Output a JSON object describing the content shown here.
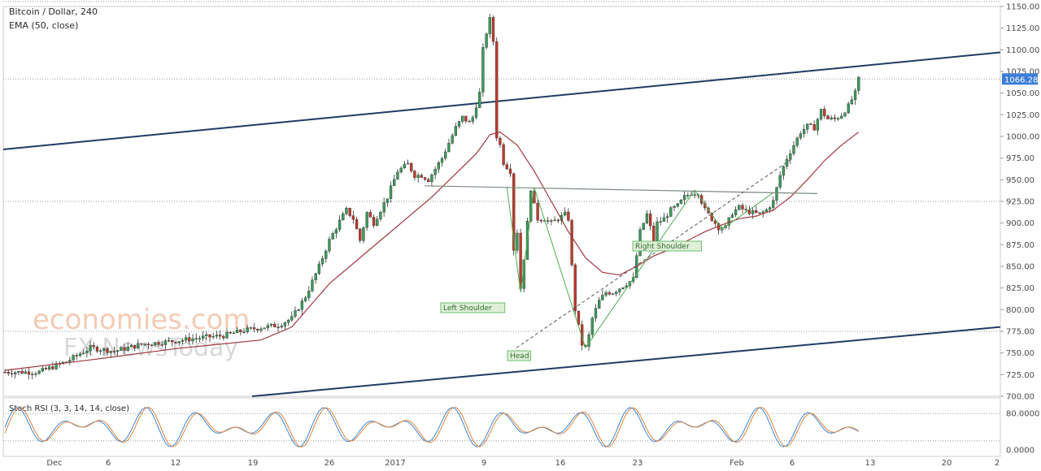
{
  "header": {
    "symbol_line": "Bitcoin / Dollar, 240",
    "indicator_line": "EMA (50, close)"
  },
  "watermark": {
    "line1": "economies.com",
    "line2": "FX NewsToday"
  },
  "stoch_panel": {
    "label": "Stoch RSI (3, 3, 14, 14, close)",
    "ticks": [
      "80.0000",
      "0.0000"
    ]
  },
  "colors": {
    "up": "#3c9a5b",
    "down": "#c0392b",
    "ema": "#a0383f",
    "channel": "#1f3b63",
    "pattern": "#4caf50",
    "price_tag": "#3b7dd8",
    "stoch_k": "#3a86d8",
    "stoch_d": "#e0833a"
  },
  "chart_data": {
    "type": "candlestick",
    "title": "Bitcoin / Dollar, 240",
    "ylim": [
      700,
      1150
    ],
    "y_ticks": [
      "1150.00",
      "1125.00",
      "1100.00",
      "1075.00",
      "1050.00",
      "1025.00",
      "1000.00",
      "975.00",
      "950.00",
      "925.00",
      "900.00",
      "875.00",
      "850.00",
      "825.00",
      "800.00",
      "775.00",
      "750.00",
      "725.00",
      "700.00"
    ],
    "x_ticks": [
      "Dec",
      "6",
      "12",
      "19",
      "26",
      "2017",
      "9",
      "16",
      "23",
      "Feb",
      "6",
      "13",
      "20",
      "2"
    ],
    "last_price": "1066.28",
    "price_path": [
      [
        0,
        728
      ],
      [
        10,
        728
      ],
      [
        18,
        740
      ],
      [
        25,
        756
      ],
      [
        32,
        752
      ],
      [
        40,
        760
      ],
      [
        50,
        764
      ],
      [
        58,
        768
      ],
      [
        64,
        770
      ],
      [
        70,
        776
      ],
      [
        76,
        780
      ],
      [
        80,
        782
      ],
      [
        84,
        790
      ],
      [
        88,
        815
      ],
      [
        92,
        850
      ],
      [
        95,
        880
      ],
      [
        98,
        902
      ],
      [
        100,
        915
      ],
      [
        102,
        905
      ],
      [
        104,
        880
      ],
      [
        106,
        912
      ],
      [
        108,
        900
      ],
      [
        112,
        930
      ],
      [
        115,
        960
      ],
      [
        118,
        968
      ],
      [
        120,
        955
      ],
      [
        122,
        955
      ],
      [
        124,
        950
      ],
      [
        128,
        975
      ],
      [
        132,
        1010
      ],
      [
        134,
        1022
      ],
      [
        136,
        1016
      ],
      [
        137,
        1022
      ],
      [
        139,
        1050
      ],
      [
        140,
        1100
      ],
      [
        141,
        1120
      ],
      [
        142,
        1135
      ],
      [
        143,
        1110
      ],
      [
        144,
        1000
      ],
      [
        145,
        990
      ],
      [
        146,
        970
      ],
      [
        148,
        960
      ],
      [
        149,
        870
      ],
      [
        150,
        890
      ],
      [
        151,
        825
      ],
      [
        152,
        860
      ],
      [
        153,
        900
      ],
      [
        154,
        940
      ],
      [
        155,
        920
      ],
      [
        156,
        905
      ],
      [
        158,
        905
      ],
      [
        160,
        900
      ],
      [
        162,
        905
      ],
      [
        164,
        910
      ],
      [
        165,
        905
      ],
      [
        166,
        850
      ],
      [
        167,
        800
      ],
      [
        168,
        780
      ],
      [
        169,
        760
      ],
      [
        170,
        756
      ],
      [
        171,
        770
      ],
      [
        172,
        790
      ],
      [
        174,
        810
      ],
      [
        176,
        820
      ],
      [
        178,
        820
      ],
      [
        180,
        825
      ],
      [
        182,
        830
      ],
      [
        184,
        835
      ],
      [
        186,
        890
      ],
      [
        188,
        910
      ],
      [
        189,
        895
      ],
      [
        190,
        880
      ],
      [
        191,
        900
      ],
      [
        193,
        905
      ],
      [
        195,
        915
      ],
      [
        197,
        920
      ],
      [
        199,
        930
      ],
      [
        201,
        935
      ],
      [
        203,
        935
      ],
      [
        205,
        915
      ],
      [
        207,
        905
      ],
      [
        209,
        895
      ],
      [
        211,
        895
      ],
      [
        213,
        912
      ],
      [
        215,
        918
      ],
      [
        217,
        914
      ],
      [
        219,
        912
      ],
      [
        221,
        910
      ],
      [
        223,
        915
      ],
      [
        225,
        925
      ],
      [
        227,
        955
      ],
      [
        229,
        975
      ],
      [
        231,
        990
      ],
      [
        233,
        1005
      ],
      [
        235,
        1012
      ],
      [
        237,
        1010
      ],
      [
        239,
        1030
      ],
      [
        241,
        1020
      ],
      [
        243,
        1020
      ],
      [
        245,
        1025
      ],
      [
        247,
        1035
      ],
      [
        249,
        1050
      ],
      [
        250,
        1066
      ]
    ],
    "ema_path": [
      [
        0,
        730
      ],
      [
        25,
        742
      ],
      [
        50,
        755
      ],
      [
        75,
        765
      ],
      [
        84,
        780
      ],
      [
        95,
        830
      ],
      [
        110,
        880
      ],
      [
        125,
        930
      ],
      [
        138,
        980
      ],
      [
        142,
        1002
      ],
      [
        145,
        1005
      ],
      [
        150,
        990
      ],
      [
        155,
        960
      ],
      [
        160,
        925
      ],
      [
        165,
        890
      ],
      [
        170,
        860
      ],
      [
        175,
        843
      ],
      [
        180,
        840
      ],
      [
        185,
        850
      ],
      [
        190,
        862
      ],
      [
        195,
        870
      ],
      [
        200,
        880
      ],
      [
        205,
        890
      ],
      [
        210,
        898
      ],
      [
        215,
        905
      ],
      [
        220,
        908
      ],
      [
        225,
        915
      ],
      [
        230,
        930
      ],
      [
        235,
        950
      ],
      [
        240,
        972
      ],
      [
        245,
        990
      ],
      [
        250,
        1005
      ]
    ],
    "stoch_series": {
      "k_name": "",
      "d_name": "",
      "ylim": [
        0,
        100
      ],
      "ticks": [
        80,
        0
      ]
    },
    "annotations": {
      "left_shoulder": "Left Shoulder",
      "head": "Head",
      "right_shoulder": "Right Shoulder",
      "neckline_level": 940,
      "horizontal_level": 925,
      "horizontal_level_low": 775
    }
  }
}
